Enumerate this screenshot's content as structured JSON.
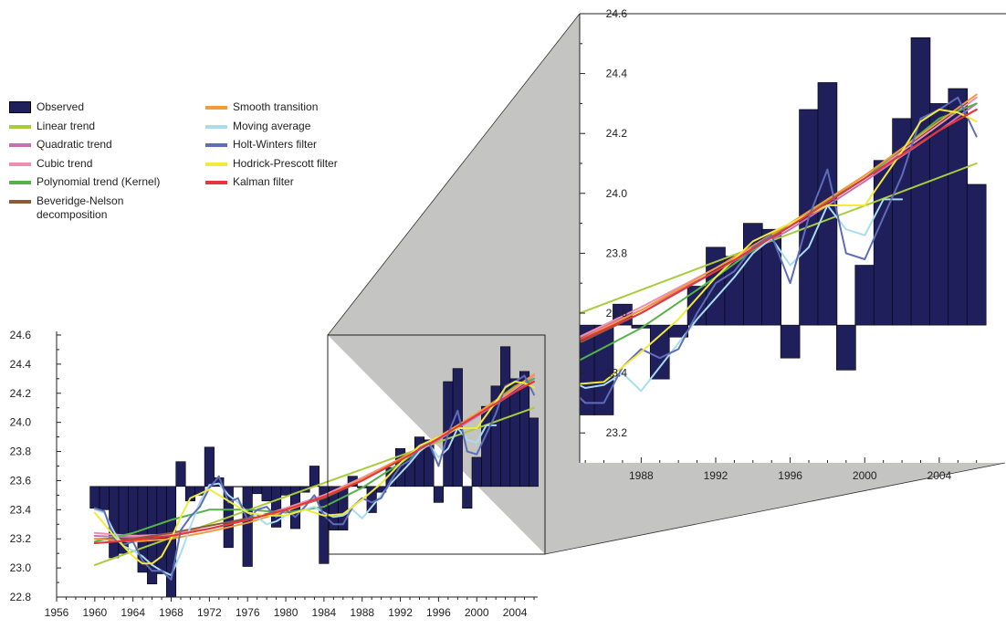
{
  "chart_data": {
    "type": "bar",
    "title": "",
    "xlabel": "",
    "ylabel": "",
    "baseline": 23.56,
    "x": [
      1960,
      1961,
      1962,
      1963,
      1964,
      1965,
      1966,
      1967,
      1968,
      1969,
      1970,
      1971,
      1972,
      1973,
      1974,
      1975,
      1976,
      1977,
      1978,
      1979,
      1980,
      1981,
      1982,
      1983,
      1984,
      1985,
      1986,
      1987,
      1988,
      1989,
      1990,
      1991,
      1992,
      1993,
      1994,
      1995,
      1996,
      1997,
      1998,
      1999,
      2000,
      2001,
      2002,
      2003,
      2004,
      2005,
      2006
    ],
    "observed": [
      23.41,
      23.4,
      23.07,
      23.1,
      23.23,
      22.97,
      22.89,
      22.96,
      22.8,
      23.73,
      23.46,
      23.5,
      23.83,
      23.62,
      23.14,
      23.56,
      23.01,
      23.51,
      23.46,
      23.28,
      23.5,
      23.27,
      23.52,
      23.7,
      23.03,
      23.26,
      23.26,
      23.63,
      23.55,
      23.38,
      23.52,
      23.69,
      23.82,
      23.79,
      23.9,
      23.88,
      23.45,
      24.28,
      24.37,
      23.41,
      23.76,
      24.11,
      24.25,
      24.52,
      24.3,
      24.35,
      24.03
    ],
    "main_panel": {
      "ylim": [
        22.8,
        24.6
      ],
      "yticks": [
        "22.8",
        "23.0",
        "23.2",
        "23.4",
        "23.6",
        "23.8",
        "24.0",
        "24.2",
        "24.4",
        "24.6"
      ],
      "xlim": [
        1956,
        2006
      ],
      "xticks": [
        "1956",
        "1960",
        "1964",
        "1968",
        "1972",
        "1976",
        "1980",
        "1984",
        "1988",
        "1992",
        "1996",
        "2000",
        "2004"
      ]
    },
    "zoom_panel": {
      "xrange": [
        1985,
        2006
      ],
      "ylim": [
        23.1,
        24.6
      ],
      "yticks": [
        "23.2",
        "23.4",
        "23.6",
        "23.8",
        "24.0",
        "24.2",
        "24.4",
        "24.6"
      ],
      "xticks": [
        "1988",
        "1992",
        "1996",
        "2000",
        "2004"
      ]
    },
    "legend_placement": "top-left",
    "series": [
      {
        "name": "Observed",
        "kind": "bar",
        "color": "#1f1f5c"
      },
      {
        "name": "Linear trend",
        "color": "#a8cc3c",
        "x": [
          1960,
          2006
        ],
        "values": [
          23.02,
          24.1
        ]
      },
      {
        "name": "Quadratic trend",
        "color": "#c86fb2",
        "x": [
          1960,
          1964,
          1968,
          1972,
          1976,
          1980,
          1984,
          1988,
          1992,
          1996,
          2000,
          2004,
          2006
        ],
        "values": [
          23.22,
          23.21,
          23.23,
          23.27,
          23.33,
          23.41,
          23.5,
          23.61,
          23.74,
          23.88,
          24.04,
          24.21,
          24.3
        ]
      },
      {
        "name": "Cubic trend",
        "color": "#ee8fb0",
        "x": [
          1960,
          1964,
          1968,
          1972,
          1976,
          1980,
          1984,
          1988,
          1992,
          1996,
          2000,
          2004,
          2006
        ],
        "values": [
          23.24,
          23.22,
          23.23,
          23.27,
          23.33,
          23.41,
          23.5,
          23.62,
          23.75,
          23.89,
          24.05,
          24.23,
          24.32
        ]
      },
      {
        "name": "Polynomial trend (Kernel)",
        "color": "#55b248",
        "x": [
          1960,
          1964,
          1968,
          1972,
          1976,
          1980,
          1984,
          1988,
          1992,
          1996,
          2000,
          2004,
          2006
        ],
        "values": [
          23.18,
          23.24,
          23.33,
          23.4,
          23.4,
          23.38,
          23.42,
          23.55,
          23.72,
          23.9,
          24.05,
          24.25,
          24.3
        ]
      },
      {
        "name": "Beveridge-Nelson decomposition",
        "color": "#8e5a3a",
        "x": [
          1960,
          1964,
          1968,
          1972,
          1976,
          1980,
          1984,
          1988,
          1992,
          1996,
          2000,
          2004,
          2006
        ],
        "values": [
          23.2,
          23.2,
          23.24,
          23.29,
          23.34,
          23.4,
          23.48,
          23.6,
          23.74,
          23.89,
          24.05,
          24.21,
          24.28
        ]
      },
      {
        "name": "Smooth transition",
        "color": "#f39a3a",
        "x": [
          1960,
          1964,
          1968,
          1972,
          1976,
          1980,
          1984,
          1988,
          1992,
          1996,
          2000,
          2004,
          2006
        ],
        "values": [
          23.2,
          23.18,
          23.2,
          23.25,
          23.31,
          23.39,
          23.49,
          23.61,
          23.75,
          23.9,
          24.06,
          24.24,
          24.33
        ]
      },
      {
        "name": "Moving average",
        "color": "#a9dcef",
        "x": [
          1960,
          1961,
          1962,
          1963,
          1964,
          1965,
          1966,
          1967,
          1968,
          1969,
          1970,
          1971,
          1972,
          1973,
          1974,
          1975,
          1976,
          1977,
          1978,
          1979,
          1980,
          1981,
          1982,
          1983,
          1984,
          1985,
          1986,
          1987,
          1988,
          1989,
          1990,
          1991,
          1992,
          1993,
          1994,
          1995,
          1996,
          1997,
          1998,
          1999,
          2000,
          2001,
          2002
        ],
        "values": [
          23.4,
          23.38,
          23.25,
          23.15,
          23.12,
          23.08,
          23.02,
          22.98,
          22.95,
          23.1,
          23.28,
          23.45,
          23.57,
          23.58,
          23.5,
          23.45,
          23.38,
          23.35,
          23.3,
          23.32,
          23.36,
          23.38,
          23.4,
          23.42,
          23.38,
          23.35,
          23.36,
          23.4,
          23.34,
          23.42,
          23.5,
          23.58,
          23.65,
          23.72,
          23.8,
          23.85,
          23.76,
          23.82,
          23.96,
          23.88,
          23.86,
          23.98,
          23.98
        ]
      },
      {
        "name": "Holt-Winters filter",
        "color": "#5f6db8",
        "x": [
          1960,
          1961,
          1962,
          1963,
          1964,
          1965,
          1966,
          1967,
          1968,
          1969,
          1970,
          1971,
          1972,
          1973,
          1974,
          1975,
          1976,
          1977,
          1978,
          1979,
          1980,
          1981,
          1982,
          1983,
          1984,
          1985,
          1986,
          1987,
          1988,
          1989,
          1990,
          1991,
          1992,
          1993,
          1994,
          1995,
          1996,
          1997,
          1998,
          1999,
          2000,
          2001,
          2002,
          2003,
          2004,
          2005,
          2006
        ],
        "values": [
          23.41,
          23.39,
          23.2,
          23.16,
          23.18,
          23.05,
          22.98,
          22.98,
          22.92,
          23.26,
          23.35,
          23.42,
          23.55,
          23.63,
          23.45,
          23.48,
          23.33,
          23.4,
          23.42,
          23.35,
          23.4,
          23.35,
          23.42,
          23.5,
          23.36,
          23.3,
          23.3,
          23.42,
          23.48,
          23.45,
          23.48,
          23.6,
          23.7,
          23.74,
          23.82,
          23.86,
          23.7,
          23.92,
          24.08,
          23.8,
          23.78,
          23.92,
          24.06,
          24.25,
          24.28,
          24.32,
          24.19
        ]
      },
      {
        "name": "Hodrick-Prescott filter",
        "color": "#f2ea3a",
        "x": [
          1960,
          1962,
          1964,
          1965,
          1966,
          1967,
          1968,
          1969,
          1970,
          1972,
          1974,
          1976,
          1978,
          1980,
          1982,
          1984,
          1986,
          1988,
          1990,
          1992,
          1994,
          1996,
          1998,
          2000,
          2002,
          2003,
          2004,
          2005,
          2006
        ],
        "values": [
          23.38,
          23.22,
          23.08,
          23.03,
          23.03,
          23.08,
          23.2,
          23.35,
          23.48,
          23.54,
          23.46,
          23.38,
          23.36,
          23.36,
          23.4,
          23.36,
          23.37,
          23.47,
          23.58,
          23.72,
          23.84,
          23.9,
          23.96,
          23.96,
          24.14,
          24.24,
          24.28,
          24.27,
          24.24
        ]
      },
      {
        "name": "Kalman filter",
        "color": "#e8343a",
        "x": [
          1960,
          1964,
          1968,
          1972,
          1976,
          1980,
          1984,
          1988,
          1992,
          1996,
          2000,
          2004,
          2006
        ],
        "values": [
          23.17,
          23.19,
          23.22,
          23.27,
          23.33,
          23.4,
          23.49,
          23.6,
          23.74,
          23.89,
          24.05,
          24.21,
          24.28
        ]
      }
    ]
  },
  "legend": {
    "col1": [
      {
        "label": "Observed",
        "color": "#1f1f5c",
        "shape": "box"
      },
      {
        "label": "Linear trend",
        "color": "#a8cc3c",
        "shape": "line"
      },
      {
        "label": "Quadratic trend",
        "color": "#c86fb2",
        "shape": "line"
      },
      {
        "label": "Cubic trend",
        "color": "#ee8fb0",
        "shape": "line"
      },
      {
        "label": "Polynomial trend (Kernel)",
        "color": "#55b248",
        "shape": "line"
      },
      {
        "label": "Beveridge-Nelson\ndecomposition",
        "color": "#8e5a3a",
        "shape": "line"
      }
    ],
    "col2": [
      {
        "label": "Smooth transition",
        "color": "#f39a3a",
        "shape": "line"
      },
      {
        "label": "Moving average",
        "color": "#a9dcef",
        "shape": "line"
      },
      {
        "label": "Holt-Winters filter",
        "color": "#5f6db8",
        "shape": "line"
      },
      {
        "label": "Hodrick-Prescott filter",
        "color": "#f2ea3a",
        "shape": "line"
      },
      {
        "label": "Kalman filter",
        "color": "#e8343a",
        "shape": "line"
      }
    ]
  },
  "colors": {
    "bar_fill": "#1f1f5c",
    "bar_stroke": "#000000",
    "zoom_connector": "#c4c4c2",
    "axis": "#222222"
  }
}
